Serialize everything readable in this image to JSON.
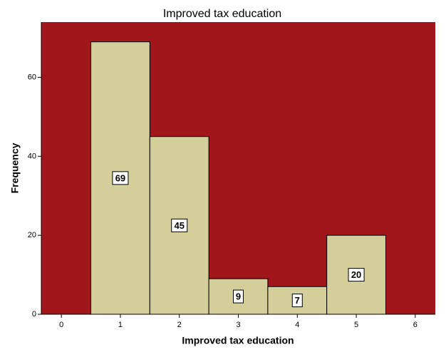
{
  "chart_data": {
    "type": "histogram",
    "title": "Improved tax education",
    "x_label": "Improved tax education",
    "y_label": "Frequency",
    "bins": [
      0.5,
      1.5,
      2.5,
      3.5,
      4.5,
      5.5
    ],
    "values": [
      69,
      45,
      9,
      7,
      20
    ],
    "color": "#d3ce9a",
    "background": "#a0161a",
    "xlim": [
      -0.34,
      6.34
    ],
    "xticks": [
      0,
      1,
      2,
      3,
      4,
      5,
      6
    ],
    "ylim": [
      0,
      74
    ],
    "yticks": [
      0,
      20,
      40,
      60
    ]
  }
}
